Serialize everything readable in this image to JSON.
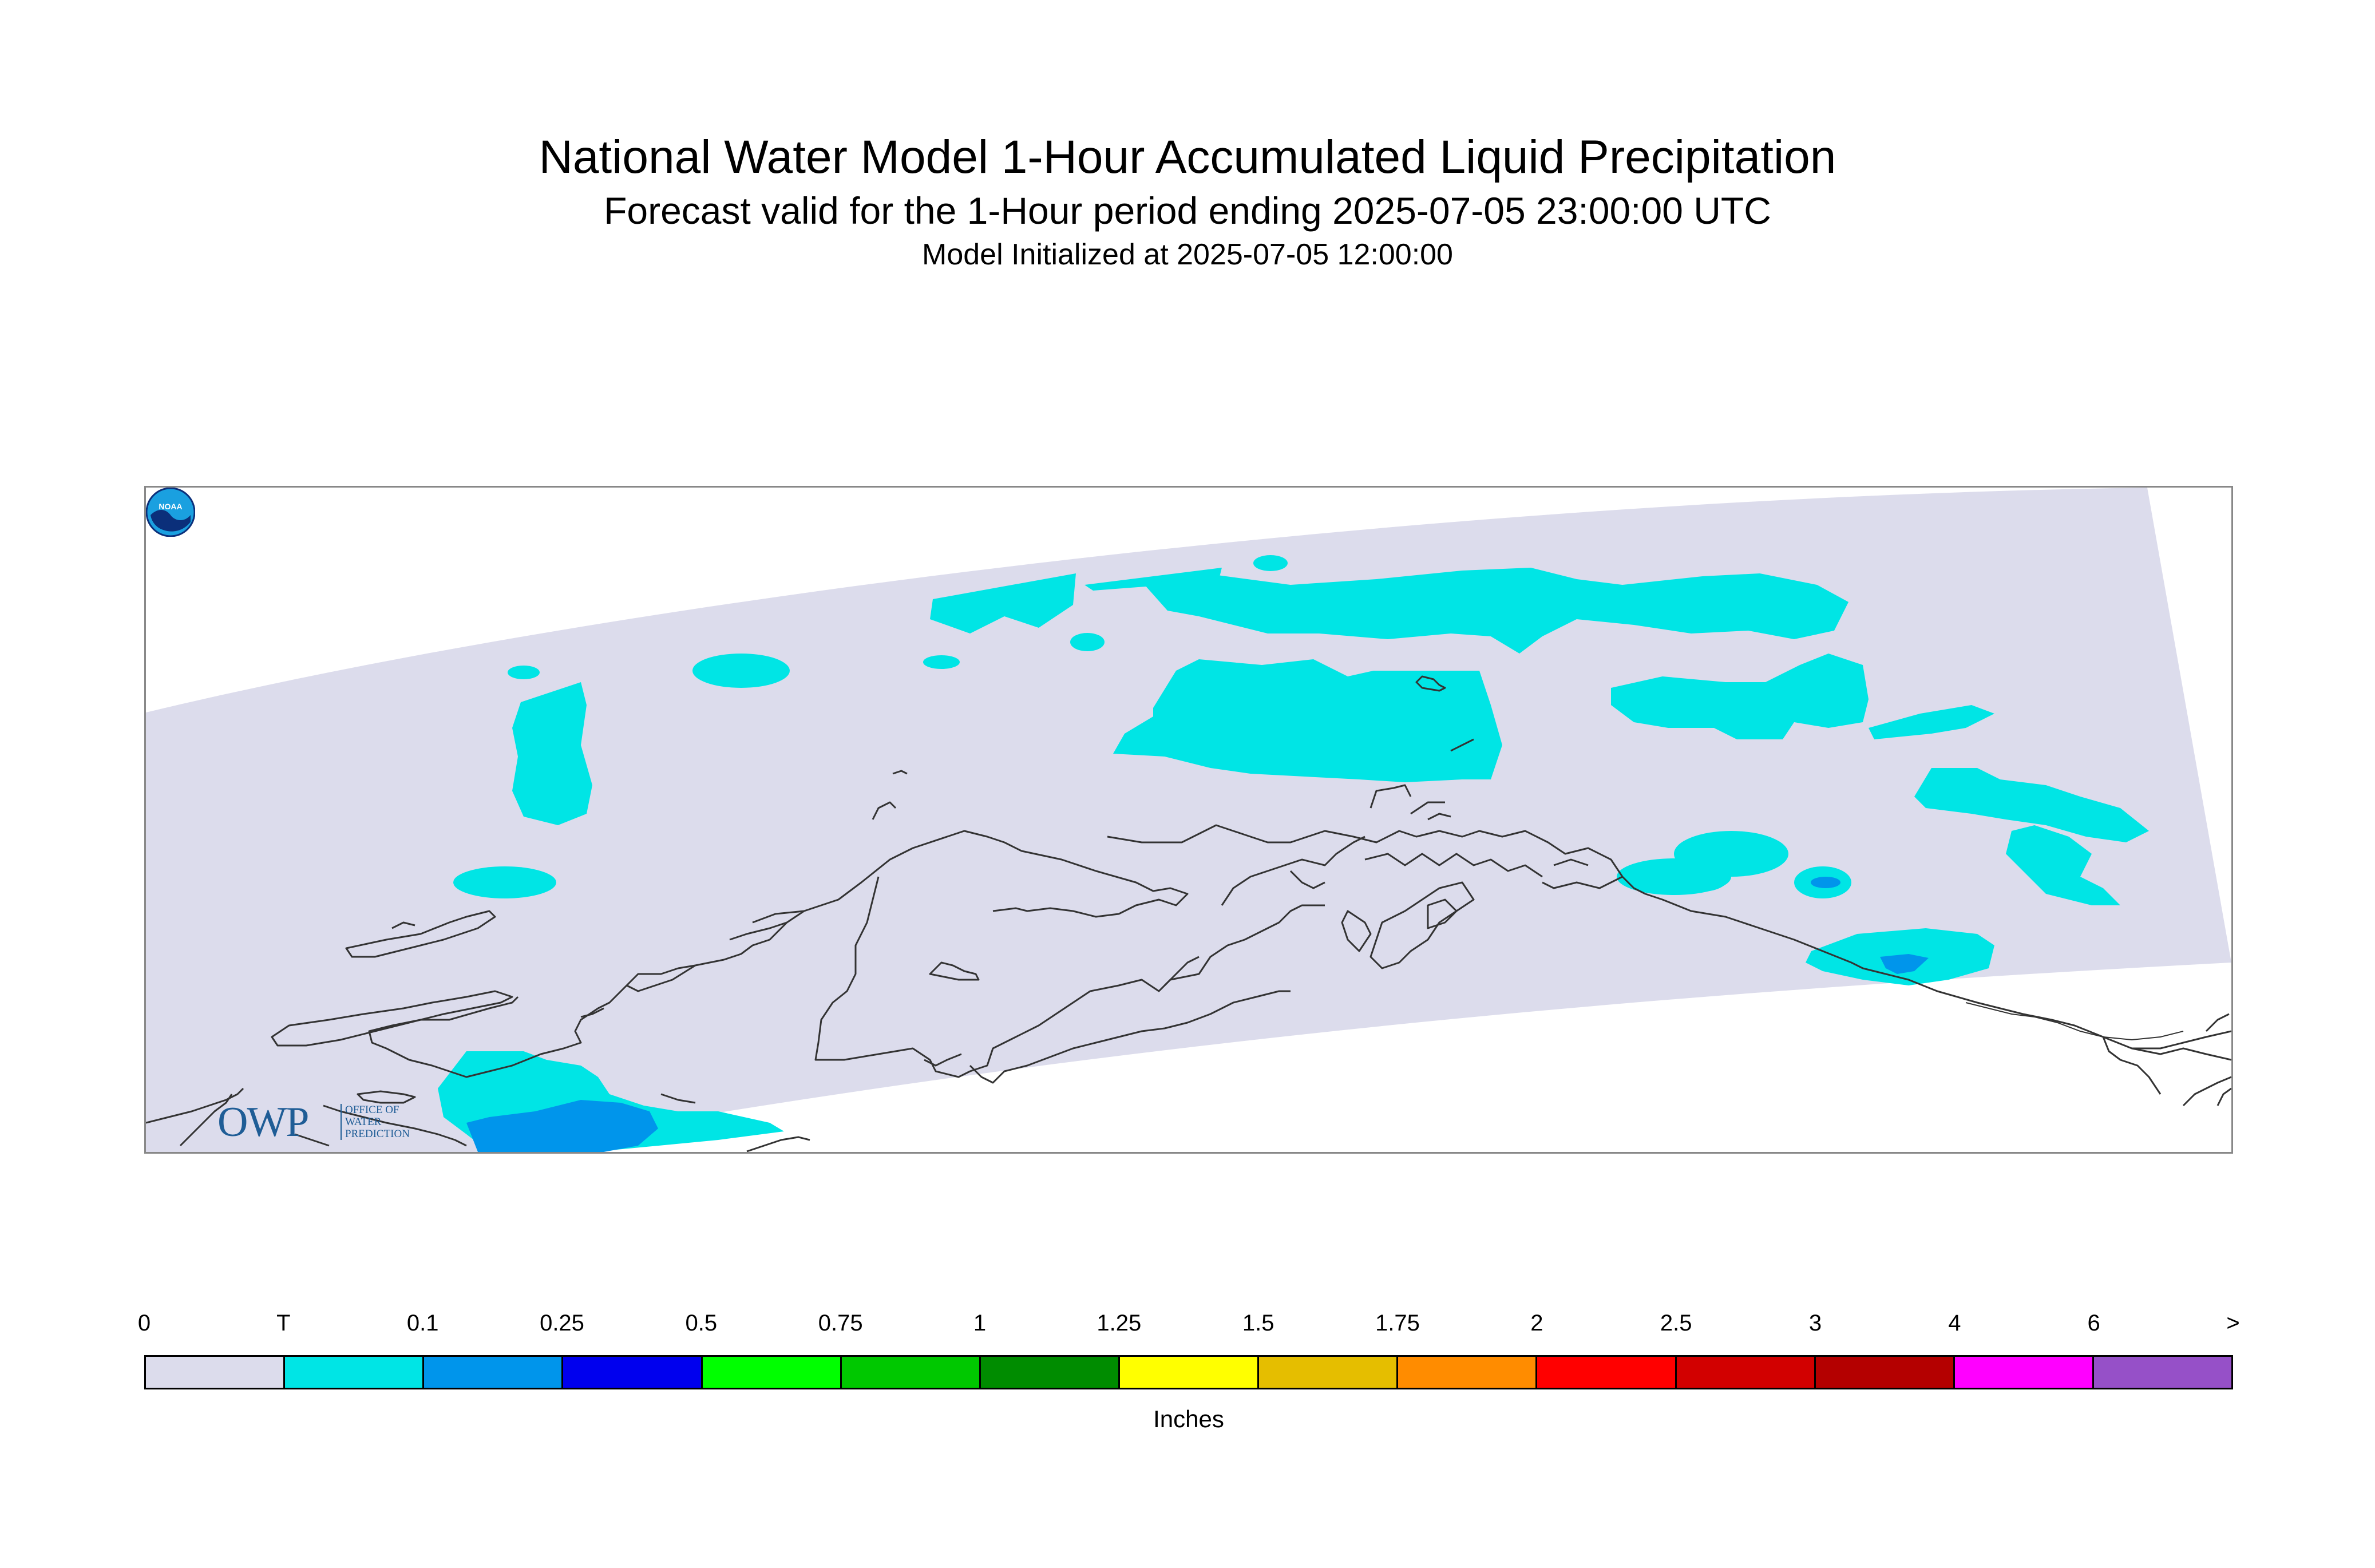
{
  "header": {
    "title": "National Water Model 1-Hour Accumulated Liquid Precipitation",
    "subtitle": "Forecast valid for the 1-Hour period ending 2025-07-05 23:00:00 UTC",
    "init": "Model Initialized at 2025-07-05 12:00:00"
  },
  "logos": {
    "owp_letters": "OWP",
    "owp_text": "OFFICE OF\nWATER\nPREDICTION",
    "noaa_text": "NOAA"
  },
  "map": {
    "domain_fill": "#dcdcec",
    "coast_color": "#333333",
    "precip_classes": [
      {
        "label": "T to 0.1",
        "color": "#00e5e5"
      },
      {
        "label": "0.1 to 0.25",
        "color": "#0095eb"
      }
    ]
  },
  "legend": {
    "unit_label": "Inches",
    "tick_labels": [
      "0",
      "T",
      "0.1",
      "0.25",
      "0.5",
      "0.75",
      "1",
      "1.25",
      "1.5",
      "1.75",
      "2",
      "2.5",
      "3",
      "4",
      "6",
      ">"
    ],
    "colors": [
      "#dcdcec",
      "#00e5e5",
      "#0095eb",
      "#0000ee",
      "#00ff00",
      "#00c800",
      "#008c00",
      "#ffff00",
      "#e5be00",
      "#ff8c00",
      "#ff0000",
      "#d20000",
      "#b40000",
      "#ff00ff",
      "#9650c8"
    ]
  }
}
